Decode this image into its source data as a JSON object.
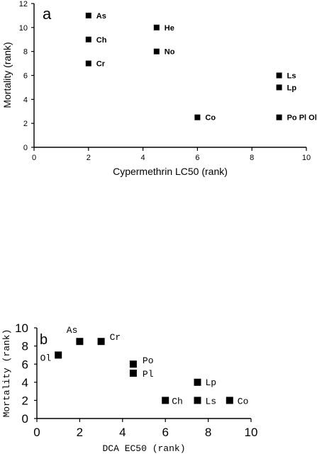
{
  "chart_data": [
    {
      "type": "scatter",
      "panel_label": "a",
      "xlabel": "Cypermethrin LC50 (rank)",
      "ylabel": "Mortality (rank)",
      "xlim": [
        0,
        10
      ],
      "ylim": [
        0,
        12
      ],
      "xticks": [
        0,
        2,
        4,
        6,
        8,
        10
      ],
      "yticks": [
        0,
        2,
        4,
        6,
        8,
        10,
        12
      ],
      "points": [
        {
          "label": "As",
          "x": 2,
          "y": 11
        },
        {
          "label": "Ch",
          "x": 2,
          "y": 9
        },
        {
          "label": "Cr",
          "x": 2,
          "y": 7
        },
        {
          "label": "He",
          "x": 4.5,
          "y": 10
        },
        {
          "label": "No",
          "x": 4.5,
          "y": 8
        },
        {
          "label": "Co",
          "x": 6,
          "y": 2.5
        },
        {
          "label": "Ls",
          "x": 9,
          "y": 6
        },
        {
          "label": "Lp",
          "x": 9,
          "y": 5
        },
        {
          "label": "Po Pl Ol",
          "x": 9,
          "y": 2.5
        }
      ]
    },
    {
      "type": "scatter",
      "panel_label": "b",
      "xlabel": "DCA EC50 (rank)",
      "ylabel": "Mortality (rank)",
      "xlim": [
        0,
        10
      ],
      "ylim": [
        0,
        10
      ],
      "xticks": [
        0,
        2,
        4,
        6,
        8,
        10
      ],
      "yticks": [
        0,
        2,
        4,
        6,
        8,
        10
      ],
      "points": [
        {
          "label": "Ol",
          "x": 1,
          "y": 7
        },
        {
          "label": "As",
          "x": 2,
          "y": 8.5
        },
        {
          "label": "Cr",
          "x": 3,
          "y": 8.5
        },
        {
          "label": "Po",
          "x": 4.5,
          "y": 6
        },
        {
          "label": "Pl",
          "x": 4.5,
          "y": 5
        },
        {
          "label": "Ch",
          "x": 6,
          "y": 2
        },
        {
          "label": "Lp",
          "x": 7.5,
          "y": 4
        },
        {
          "label": "Ls",
          "x": 7.5,
          "y": 2
        },
        {
          "label": "Co",
          "x": 9,
          "y": 2
        }
      ]
    }
  ]
}
